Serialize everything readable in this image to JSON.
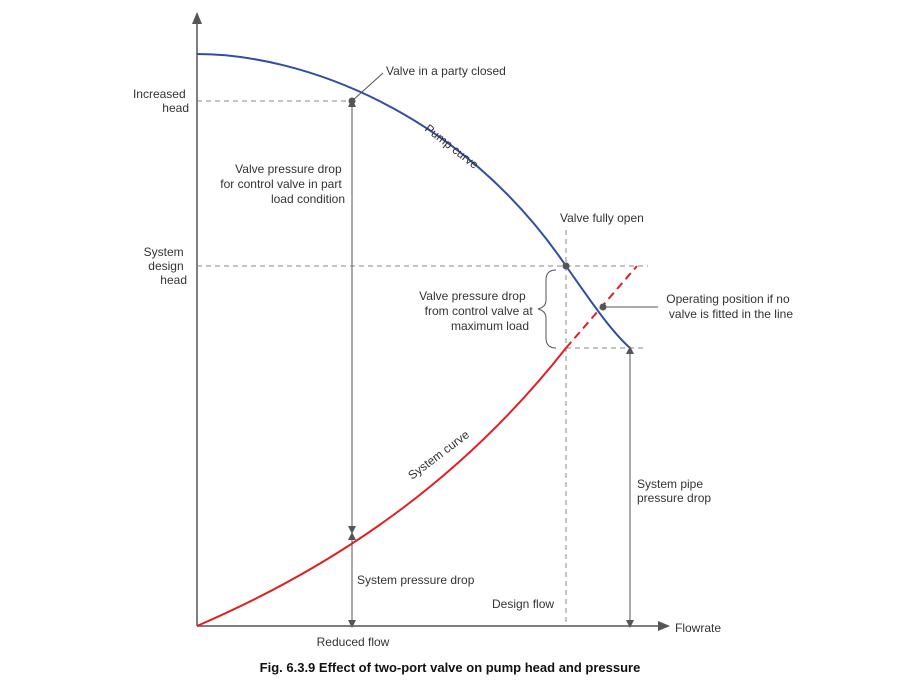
{
  "figure": {
    "caption": "Fig. 6.3.9 Effect of two-port valve on pump head and pressure",
    "axes": {
      "x_label": "Flowrate"
    },
    "y_labels": {
      "increased_head": [
        "Increased",
        "head"
      ],
      "system_design_head": [
        "System",
        "design",
        "head"
      ]
    },
    "curves": {
      "pump": {
        "label": "Pump curve",
        "color": "#2e4fa3"
      },
      "system": {
        "label": "System curve",
        "color": "#e02020"
      }
    },
    "annotations": {
      "valve_partly_closed": "Valve in a party closed",
      "valve_fully_open": "Valve fully open",
      "operating_position": [
        "Operating position if no",
        "valve is fitted in the line"
      ],
      "valve_drop_part_load": [
        "Valve pressure drop",
        "for control valve in part",
        "load condition"
      ],
      "valve_drop_max_load": [
        "Valve pressure drop",
        "from control valve at",
        "maximum load"
      ],
      "system_pressure_drop": "System pressure drop",
      "system_pipe_pressure_drop": [
        "System pipe",
        "pressure drop"
      ],
      "design_flow": "Design flow",
      "reduced_flow": "Reduced flow"
    },
    "colors": {
      "axis": "#555555",
      "guide": "#8a8a8a",
      "point": "#555555"
    }
  }
}
